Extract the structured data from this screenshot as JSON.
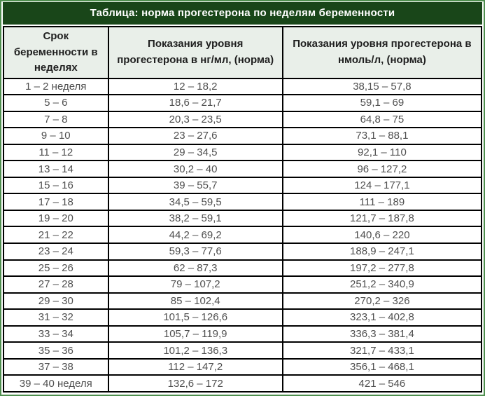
{
  "title": "Таблица: норма прогестерона по неделям беременности",
  "table": {
    "columns": [
      "Срок беременности в неделях",
      "Показания уровня прогестерона в нг/мл, (норма)",
      "Показания уровня прогестерона в нмоль/л, (норма)"
    ],
    "rows": [
      [
        "1 – 2 неделя",
        "12 – 18,2",
        "38,15 – 57,8"
      ],
      [
        "5 – 6",
        "18,6 – 21,7",
        "59,1 – 69"
      ],
      [
        "7 – 8",
        "20,3 – 23,5",
        "64,8 – 75"
      ],
      [
        "9 – 10",
        "23 – 27,6",
        "73,1 – 88,1"
      ],
      [
        "11 – 12",
        "29 – 34,5",
        "92,1 – 110"
      ],
      [
        "13 – 14",
        "30,2 – 40",
        "96 – 127,2"
      ],
      [
        "15 – 16",
        "39 – 55,7",
        "124 – 177,1"
      ],
      [
        "17 – 18",
        "34,5 – 59,5",
        "111 – 189"
      ],
      [
        "19 – 20",
        "38,2 – 59,1",
        "121,7 – 187,8"
      ],
      [
        "21 – 22",
        "44,2 – 69,2",
        "140,6 – 220"
      ],
      [
        "23 – 24",
        "59,3 – 77,6",
        "188,9 – 247,1"
      ],
      [
        "25 – 26",
        "62 – 87,3",
        "197,2 – 277,8"
      ],
      [
        "27 – 28",
        "79 – 107,2",
        "251,2 – 340,9"
      ],
      [
        "29 – 30",
        "85 – 102,4",
        "270,2 – 326"
      ],
      [
        "31 – 32",
        "101,5 – 126,6",
        "323,1 – 402,8"
      ],
      [
        "33 – 34",
        "105,7 – 119,9",
        "336,3 – 381,4"
      ],
      [
        "35 – 36",
        "101,2 – 136,3",
        "321,7 – 433,1"
      ],
      [
        "37 – 38",
        "112 – 147,2",
        "356,1 – 468,1"
      ],
      [
        "39 – 40 неделя",
        "132,6 – 172",
        "421 – 546"
      ]
    ]
  },
  "colors": {
    "title_bg": "#194619",
    "title_text": "#ffffff",
    "header_bg": "#e9efe9",
    "header_text": "#1f1f1f",
    "row_bg": "#ffffff",
    "cell_text": "#4f4f4f",
    "cell_border": "#000000",
    "border_outer": "#4f8f4f"
  }
}
